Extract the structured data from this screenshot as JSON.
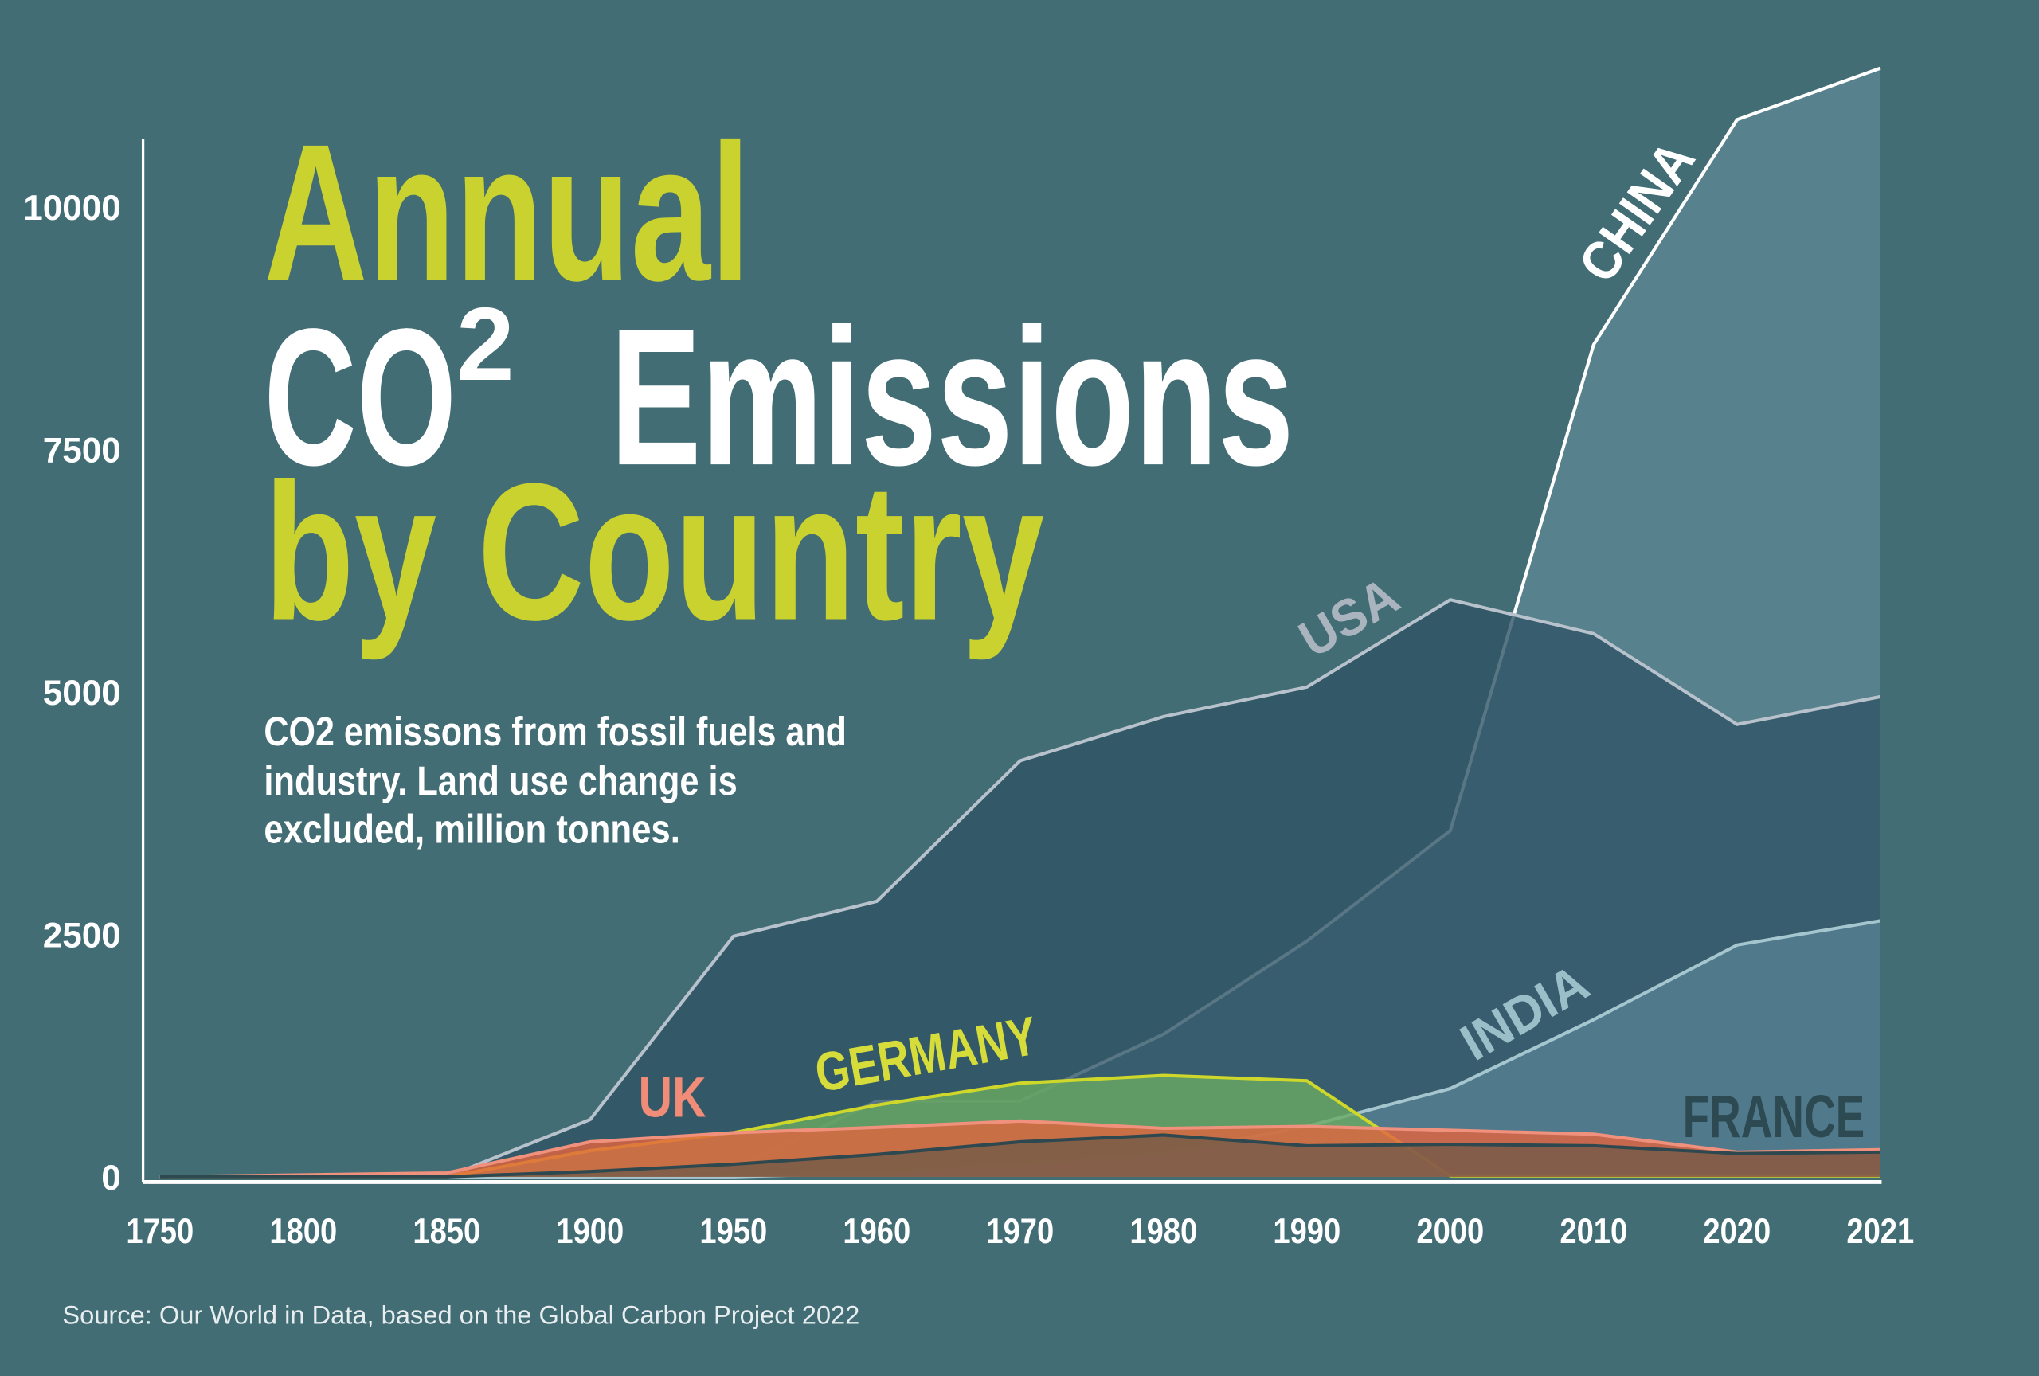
{
  "chart_data": {
    "type": "area",
    "title": [
      "Annual",
      "CO",
      "2",
      " Emissions",
      "by Country"
    ],
    "subtitle": [
      "CO2 emissons from fossil fuels and",
      "industry. Land use change is",
      "excluded, million tonnes."
    ],
    "source": "Source: Our World in Data, based on the Global Carbon Project 2022",
    "xlabel": "",
    "ylabel": "",
    "ylim": [
      0,
      11500
    ],
    "yticks": [
      "10000",
      "7500",
      "5000",
      "2500",
      "0"
    ],
    "ytick_values": [
      10000,
      7500,
      5000,
      2500,
      0
    ],
    "categories": [
      "1750",
      "1800",
      "1850",
      "1900",
      "1950",
      "1960",
      "1970",
      "1980",
      "1990",
      "2000",
      "2010",
      "2020",
      "2021"
    ],
    "series": [
      {
        "name": "CHINA",
        "fill": "#5a8590",
        "fillOpacity": 0.85,
        "stroke": "#ffffff",
        "labelColor": "#ffffff",
        "values": [
          0,
          0,
          0,
          0,
          80,
          780,
          780,
          1470,
          2430,
          3570,
          8580,
          10900,
          11430
        ]
      },
      {
        "name": "USA",
        "fill": "#2f5466",
        "fillOpacity": 0.8,
        "stroke": "#b8c2cc",
        "labelColor": "#a9b4bf",
        "values": [
          0,
          0,
          0,
          590,
          2480,
          2840,
          4290,
          4745,
          5050,
          5950,
          5600,
          4665,
          4950
        ]
      },
      {
        "name": "INDIA",
        "fill": "#5a8496",
        "fillOpacity": 0.75,
        "stroke": "#a6c6cf",
        "labelColor": "#9bbfc9",
        "values": [
          0,
          0,
          0,
          0,
          0,
          40,
          130,
          240,
          520,
          910,
          1620,
          2390,
          2640
        ]
      },
      {
        "name": "GERMANY",
        "fill": "#6aaa62",
        "fillOpacity": 0.8,
        "stroke": "#cfd82a",
        "labelColor": "#d6dc3a",
        "values": [
          0,
          0,
          0,
          270,
          455,
          740,
          965,
          1045,
          990,
          10,
          10,
          10,
          10
        ]
      },
      {
        "name": "UK",
        "fill": "#e2643f",
        "fillOpacity": 0.8,
        "stroke": "#f0917d",
        "labelColor": "#f08c78",
        "values": [
          0,
          20,
          40,
          360,
          455,
          510,
          575,
          500,
          520,
          480,
          440,
          255,
          280
        ]
      },
      {
        "name": "FRANCE",
        "fill": "#6e5a4a",
        "fillOpacity": 0.75,
        "stroke": "#2e4850",
        "labelColor": "#2d4a52",
        "values": [
          0,
          0,
          0,
          55,
          130,
          230,
          360,
          430,
          320,
          335,
          320,
          240,
          255
        ]
      }
    ],
    "colors": {
      "background": "#436d75",
      "title_accent": "#c9d22e",
      "title_main": "#ffffff"
    }
  }
}
